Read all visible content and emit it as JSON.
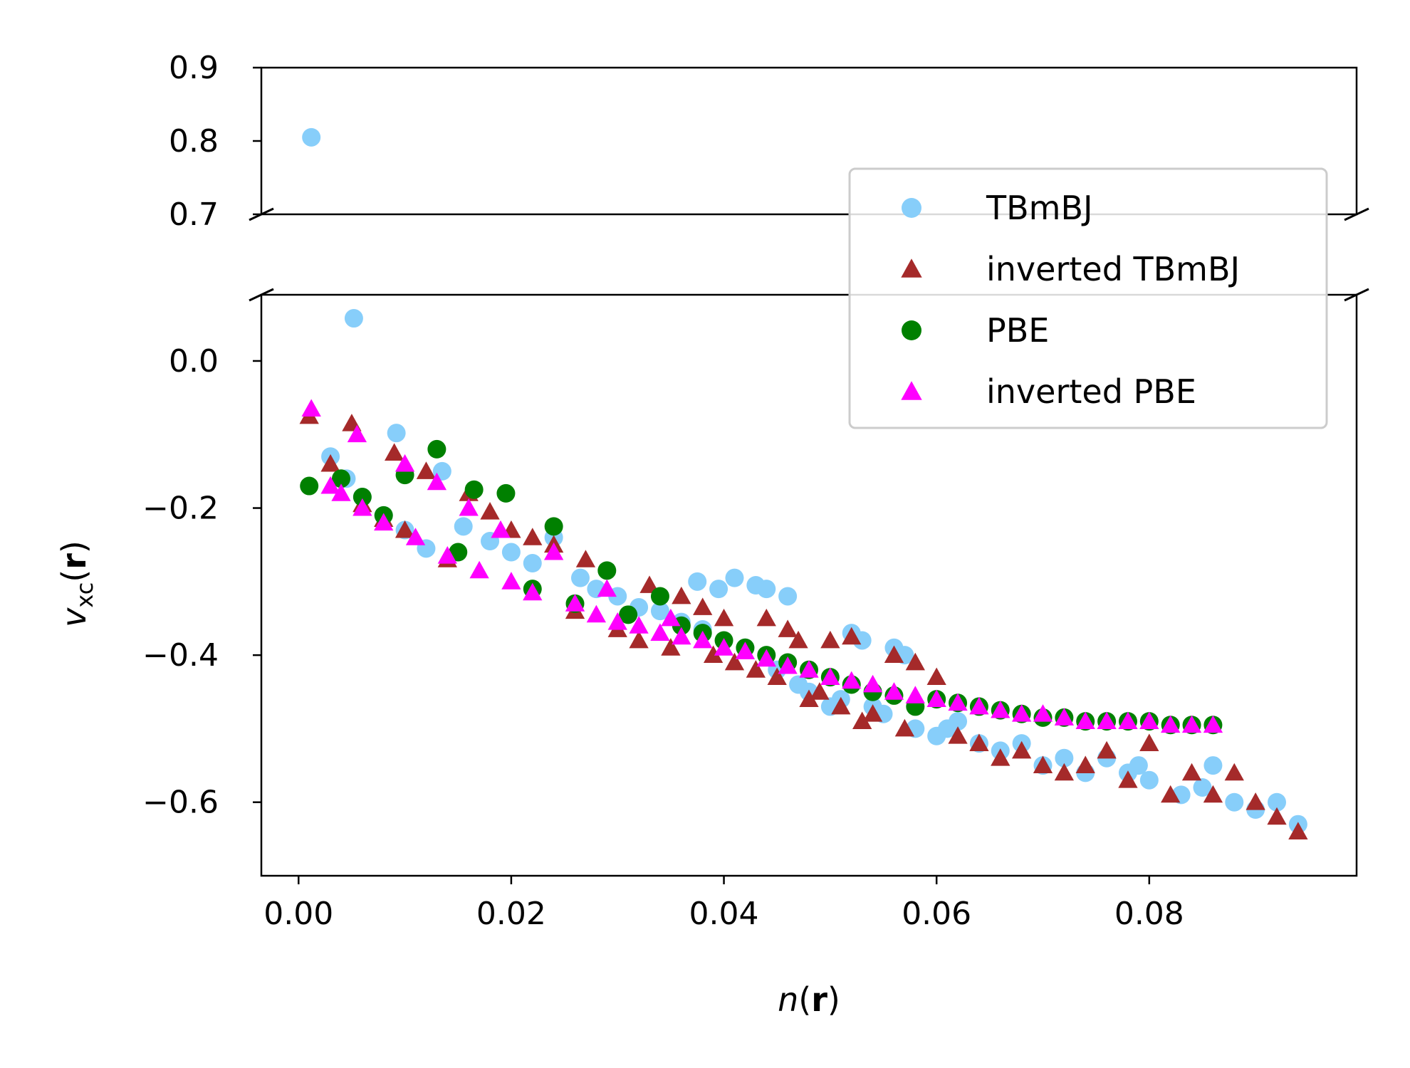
{
  "chart_data": {
    "type": "scatter",
    "xlabel": "n(r)",
    "ylabel": "v_xc(r)",
    "xlim": [
      -0.0035,
      0.0995
    ],
    "axis_break": {
      "upper_ylim": [
        0.7,
        0.9
      ],
      "lower_ylim": [
        -0.7,
        0.09
      ]
    },
    "x_ticks": [
      {
        "value": 0.0,
        "label": "0.00"
      },
      {
        "value": 0.02,
        "label": "0.02"
      },
      {
        "value": 0.04,
        "label": "0.04"
      },
      {
        "value": 0.06,
        "label": "0.06"
      },
      {
        "value": 0.08,
        "label": "0.08"
      }
    ],
    "y_ticks_upper": [
      {
        "value": 0.9,
        "label": "0.9"
      },
      {
        "value": 0.8,
        "label": "0.8"
      },
      {
        "value": 0.7,
        "label": "0.7"
      }
    ],
    "y_ticks_lower": [
      {
        "value": 0.0,
        "label": "0.0"
      },
      {
        "value": -0.2,
        "label": "−0.2"
      },
      {
        "value": -0.4,
        "label": "−0.4"
      },
      {
        "value": -0.6,
        "label": "−0.6"
      }
    ],
    "legend_position": "right",
    "series": [
      {
        "name": "TBmBJ",
        "marker": "circle",
        "color": "#87cefa",
        "points": [
          [
            0.0012,
            0.805
          ],
          [
            0.0052,
            0.058
          ],
          [
            0.003,
            -0.13
          ],
          [
            0.0045,
            -0.16
          ],
          [
            0.006,
            -0.185
          ],
          [
            0.008,
            -0.21
          ],
          [
            0.0092,
            -0.098
          ],
          [
            0.01,
            -0.23
          ],
          [
            0.012,
            -0.255
          ],
          [
            0.0135,
            -0.15
          ],
          [
            0.0155,
            -0.225
          ],
          [
            0.018,
            -0.245
          ],
          [
            0.02,
            -0.26
          ],
          [
            0.022,
            -0.275
          ],
          [
            0.024,
            -0.24
          ],
          [
            0.0265,
            -0.295
          ],
          [
            0.028,
            -0.31
          ],
          [
            0.03,
            -0.32
          ],
          [
            0.032,
            -0.335
          ],
          [
            0.034,
            -0.34
          ],
          [
            0.036,
            -0.355
          ],
          [
            0.0375,
            -0.3
          ],
          [
            0.038,
            -0.365
          ],
          [
            0.0395,
            -0.31
          ],
          [
            0.041,
            -0.295
          ],
          [
            0.042,
            -0.39
          ],
          [
            0.043,
            -0.305
          ],
          [
            0.044,
            -0.31
          ],
          [
            0.045,
            -0.42
          ],
          [
            0.046,
            -0.32
          ],
          [
            0.047,
            -0.44
          ],
          [
            0.048,
            -0.45
          ],
          [
            0.05,
            -0.47
          ],
          [
            0.051,
            -0.46
          ],
          [
            0.052,
            -0.37
          ],
          [
            0.053,
            -0.38
          ],
          [
            0.054,
            -0.47
          ],
          [
            0.055,
            -0.48
          ],
          [
            0.056,
            -0.39
          ],
          [
            0.057,
            -0.4
          ],
          [
            0.058,
            -0.5
          ],
          [
            0.06,
            -0.51
          ],
          [
            0.061,
            -0.5
          ],
          [
            0.062,
            -0.49
          ],
          [
            0.064,
            -0.52
          ],
          [
            0.066,
            -0.53
          ],
          [
            0.068,
            -0.52
          ],
          [
            0.07,
            -0.55
          ],
          [
            0.072,
            -0.54
          ],
          [
            0.074,
            -0.56
          ],
          [
            0.076,
            -0.54
          ],
          [
            0.078,
            -0.56
          ],
          [
            0.079,
            -0.55
          ],
          [
            0.08,
            -0.57
          ],
          [
            0.083,
            -0.59
          ],
          [
            0.085,
            -0.58
          ],
          [
            0.086,
            -0.55
          ],
          [
            0.088,
            -0.6
          ],
          [
            0.09,
            -0.61
          ],
          [
            0.092,
            -0.6
          ],
          [
            0.094,
            -0.63
          ]
        ]
      },
      {
        "name": "inverted TBmBJ",
        "marker": "triangle",
        "color": "#a52a2a",
        "points": [
          [
            0.001,
            -0.075
          ],
          [
            0.003,
            -0.14
          ],
          [
            0.005,
            -0.085
          ],
          [
            0.006,
            -0.195
          ],
          [
            0.008,
            -0.215
          ],
          [
            0.009,
            -0.125
          ],
          [
            0.01,
            -0.23
          ],
          [
            0.012,
            -0.15
          ],
          [
            0.014,
            -0.27
          ],
          [
            0.016,
            -0.18
          ],
          [
            0.018,
            -0.205
          ],
          [
            0.02,
            -0.23
          ],
          [
            0.022,
            -0.24
          ],
          [
            0.024,
            -0.25
          ],
          [
            0.026,
            -0.34
          ],
          [
            0.027,
            -0.27
          ],
          [
            0.03,
            -0.365
          ],
          [
            0.032,
            -0.38
          ],
          [
            0.033,
            -0.305
          ],
          [
            0.035,
            -0.39
          ],
          [
            0.036,
            -0.32
          ],
          [
            0.038,
            -0.335
          ],
          [
            0.039,
            -0.4
          ],
          [
            0.04,
            -0.35
          ],
          [
            0.041,
            -0.41
          ],
          [
            0.043,
            -0.42
          ],
          [
            0.044,
            -0.35
          ],
          [
            0.045,
            -0.43
          ],
          [
            0.046,
            -0.365
          ],
          [
            0.047,
            -0.38
          ],
          [
            0.048,
            -0.46
          ],
          [
            0.049,
            -0.45
          ],
          [
            0.05,
            -0.38
          ],
          [
            0.051,
            -0.47
          ],
          [
            0.052,
            -0.375
          ],
          [
            0.053,
            -0.49
          ],
          [
            0.054,
            -0.48
          ],
          [
            0.056,
            -0.4
          ],
          [
            0.057,
            -0.5
          ],
          [
            0.058,
            -0.41
          ],
          [
            0.06,
            -0.43
          ],
          [
            0.062,
            -0.51
          ],
          [
            0.064,
            -0.52
          ],
          [
            0.066,
            -0.54
          ],
          [
            0.068,
            -0.53
          ],
          [
            0.07,
            -0.55
          ],
          [
            0.072,
            -0.56
          ],
          [
            0.074,
            -0.55
          ],
          [
            0.076,
            -0.53
          ],
          [
            0.078,
            -0.57
          ],
          [
            0.08,
            -0.52
          ],
          [
            0.082,
            -0.59
          ],
          [
            0.084,
            -0.56
          ],
          [
            0.086,
            -0.59
          ],
          [
            0.088,
            -0.56
          ],
          [
            0.09,
            -0.6
          ],
          [
            0.092,
            -0.62
          ],
          [
            0.094,
            -0.64
          ]
        ]
      },
      {
        "name": "PBE",
        "marker": "circle",
        "color": "#008000",
        "points": [
          [
            0.001,
            -0.17
          ],
          [
            0.004,
            -0.16
          ],
          [
            0.006,
            -0.185
          ],
          [
            0.008,
            -0.21
          ],
          [
            0.01,
            -0.155
          ],
          [
            0.013,
            -0.12
          ],
          [
            0.015,
            -0.26
          ],
          [
            0.0165,
            -0.175
          ],
          [
            0.0195,
            -0.18
          ],
          [
            0.022,
            -0.31
          ],
          [
            0.024,
            -0.225
          ],
          [
            0.026,
            -0.33
          ],
          [
            0.029,
            -0.285
          ],
          [
            0.031,
            -0.345
          ],
          [
            0.034,
            -0.32
          ],
          [
            0.036,
            -0.36
          ],
          [
            0.038,
            -0.37
          ],
          [
            0.04,
            -0.38
          ],
          [
            0.042,
            -0.39
          ],
          [
            0.044,
            -0.4
          ],
          [
            0.046,
            -0.41
          ],
          [
            0.048,
            -0.42
          ],
          [
            0.05,
            -0.43
          ],
          [
            0.052,
            -0.44
          ],
          [
            0.054,
            -0.45
          ],
          [
            0.056,
            -0.455
          ],
          [
            0.058,
            -0.47
          ],
          [
            0.06,
            -0.46
          ],
          [
            0.062,
            -0.465
          ],
          [
            0.064,
            -0.47
          ],
          [
            0.066,
            -0.475
          ],
          [
            0.068,
            -0.48
          ],
          [
            0.07,
            -0.485
          ],
          [
            0.072,
            -0.485
          ],
          [
            0.074,
            -0.49
          ],
          [
            0.076,
            -0.49
          ],
          [
            0.078,
            -0.49
          ],
          [
            0.08,
            -0.49
          ],
          [
            0.082,
            -0.495
          ],
          [
            0.084,
            -0.495
          ],
          [
            0.086,
            -0.495
          ]
        ]
      },
      {
        "name": "inverted PBE",
        "marker": "triangle",
        "color": "#ff00ff",
        "points": [
          [
            0.0012,
            -0.065
          ],
          [
            0.003,
            -0.17
          ],
          [
            0.004,
            -0.18
          ],
          [
            0.0055,
            -0.1
          ],
          [
            0.006,
            -0.2
          ],
          [
            0.008,
            -0.22
          ],
          [
            0.01,
            -0.14
          ],
          [
            0.011,
            -0.24
          ],
          [
            0.013,
            -0.165
          ],
          [
            0.014,
            -0.265
          ],
          [
            0.016,
            -0.2
          ],
          [
            0.017,
            -0.285
          ],
          [
            0.019,
            -0.23
          ],
          [
            0.02,
            -0.3
          ],
          [
            0.022,
            -0.315
          ],
          [
            0.024,
            -0.26
          ],
          [
            0.026,
            -0.33
          ],
          [
            0.028,
            -0.345
          ],
          [
            0.029,
            -0.31
          ],
          [
            0.03,
            -0.355
          ],
          [
            0.032,
            -0.36
          ],
          [
            0.034,
            -0.37
          ],
          [
            0.035,
            -0.35
          ],
          [
            0.036,
            -0.375
          ],
          [
            0.038,
            -0.38
          ],
          [
            0.04,
            -0.39
          ],
          [
            0.042,
            -0.395
          ],
          [
            0.044,
            -0.405
          ],
          [
            0.046,
            -0.415
          ],
          [
            0.048,
            -0.42
          ],
          [
            0.05,
            -0.43
          ],
          [
            0.052,
            -0.435
          ],
          [
            0.054,
            -0.44
          ],
          [
            0.056,
            -0.45
          ],
          [
            0.058,
            -0.455
          ],
          [
            0.06,
            -0.46
          ],
          [
            0.062,
            -0.465
          ],
          [
            0.064,
            -0.47
          ],
          [
            0.066,
            -0.475
          ],
          [
            0.068,
            -0.48
          ],
          [
            0.07,
            -0.48
          ],
          [
            0.072,
            -0.485
          ],
          [
            0.074,
            -0.49
          ],
          [
            0.076,
            -0.49
          ],
          [
            0.078,
            -0.49
          ],
          [
            0.08,
            -0.49
          ],
          [
            0.082,
            -0.495
          ],
          [
            0.084,
            -0.495
          ],
          [
            0.086,
            -0.495
          ]
        ]
      }
    ]
  }
}
